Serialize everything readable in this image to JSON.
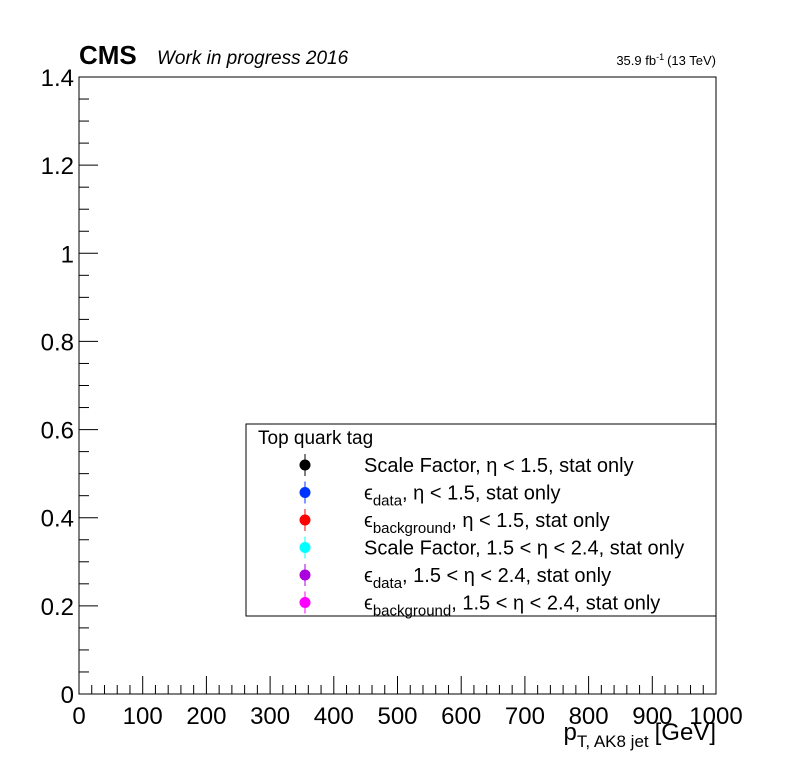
{
  "header": {
    "experiment": "CMS",
    "subtitle": "Work in progress 2016",
    "lumi_value": "35.9 fb",
    "lumi_exponent": "-1",
    "lumi_energy": "(13 TeV)"
  },
  "chart_data": {
    "type": "scatter",
    "xlabel_main": "p",
    "xlabel_sub": "T, AK8 jet",
    "xlabel_unit": "[GeV]",
    "ylabel": "",
    "xlim": [
      0,
      1000
    ],
    "ylim": [
      0,
      1.4
    ],
    "x_ticks": [
      "0",
      "100",
      "200",
      "300",
      "400",
      "500",
      "600",
      "700",
      "800",
      "900",
      "1000"
    ],
    "y_ticks": [
      "0",
      "0.2",
      "0.4",
      "0.6",
      "0.8",
      "1",
      "1.2",
      "1.4"
    ],
    "grid": false,
    "legend_placement": "bottom-right",
    "legend": {
      "header": "Top quark tag",
      "entries": [
        {
          "pre": "Scale Factor, ",
          "sym": "",
          "sub": "",
          "post": "η < 1.5, stat only",
          "color": "#000000"
        },
        {
          "pre": "",
          "sym": "ϵ",
          "sub": "data",
          "post": ", η < 1.5, stat only",
          "color": "#0033ff"
        },
        {
          "pre": "",
          "sym": "ϵ",
          "sub": "background",
          "post": ", η < 1.5, stat only",
          "color": "#ff0000"
        },
        {
          "pre": "Scale Factor, ",
          "sym": "",
          "sub": "",
          "post": "1.5 < η < 2.4, stat only",
          "color": "#00ffff"
        },
        {
          "pre": "",
          "sym": "ϵ",
          "sub": "data",
          "post": ", 1.5 < η < 2.4, stat only",
          "color": "#aa00dd"
        },
        {
          "pre": "",
          "sym": "ϵ",
          "sub": "background",
          "post": ", 1.5 < η < 2.4, stat only",
          "color": "#ff00ff"
        }
      ]
    },
    "series": [
      {
        "name": "Scale Factor, η < 1.5, stat only",
        "values": []
      },
      {
        "name": "ϵdata, η < 1.5, stat only",
        "values": []
      },
      {
        "name": "ϵbackground, η < 1.5, stat only",
        "values": []
      },
      {
        "name": "Scale Factor, 1.5 < η < 2.4, stat only",
        "values": []
      },
      {
        "name": "ϵdata, 1.5 < η < 2.4, stat only",
        "values": []
      },
      {
        "name": "ϵbackground, 1.5 < η < 2.4, stat only",
        "values": []
      }
    ]
  }
}
